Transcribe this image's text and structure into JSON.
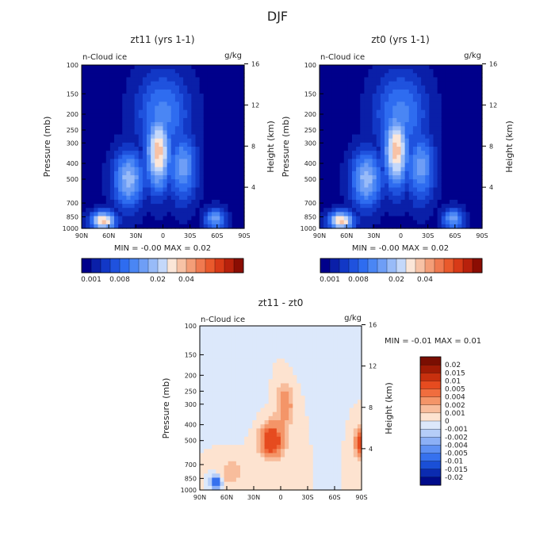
{
  "figure_title": "DJF",
  "colors": {
    "seq": [
      "#00008b",
      "#0a1fa8",
      "#1238c6",
      "#1f52de",
      "#2e6cf0",
      "#4a86f4",
      "#6e9ef6",
      "#98bbf8",
      "#c4d8fa",
      "#fbe6d8",
      "#f7c2a6",
      "#f49e78",
      "#f07a50",
      "#ea5a2c",
      "#d83a17",
      "#b8210c",
      "#8b0d03"
    ],
    "diff": [
      "#000b8a",
      "#0b2bb0",
      "#1a4fd6",
      "#3671ee",
      "#5e90f3",
      "#8cb0f6",
      "#b5cdf8",
      "#dce8fb",
      "#fde3d0",
      "#f8bd9c",
      "#f49568",
      "#f06d3e",
      "#e64b1f",
      "#c8300e",
      "#a01b05",
      "#7a0e02"
    ]
  },
  "chart_data": [
    {
      "type": "heatmap",
      "title": "zt11 (yrs 1-1)",
      "variable_label": "n-Cloud ice",
      "units": "g/kg",
      "ylabel": "Pressure (mb)",
      "ylabel_right": "Height (km)",
      "x_ticks": [
        "90N",
        "60N",
        "30N",
        "0",
        "30S",
        "60S",
        "90S"
      ],
      "x_range": [
        90,
        -90
      ],
      "y_ticks": [
        100,
        150,
        200,
        250,
        300,
        400,
        500,
        700,
        850,
        1000
      ],
      "y_range": [
        100,
        1000
      ],
      "y_scale": "log",
      "height_ticks": [
        16,
        12,
        8,
        4
      ],
      "min_max_text": "MIN =  -0.00    MAX =   0.02",
      "colorbar_labels": [
        "0.001",
        "0.008",
        "0.02",
        "0.04"
      ],
      "colorbar_label_positions": [
        0,
        3,
        7,
        10
      ],
      "colorbar_levels": 17,
      "field": [
        {
          "lat": 66,
          "p": 900,
          "v": 10,
          "rx": 14,
          "rp": 0.14
        },
        {
          "lat": 38,
          "p": 500,
          "v": 7,
          "rx": 18,
          "rp": 0.42
        },
        {
          "lat": 5,
          "p": 340,
          "v": 10,
          "rx": 14,
          "rp": 0.55
        },
        {
          "lat": -22,
          "p": 420,
          "v": 6,
          "rx": 16,
          "rp": 0.5
        },
        {
          "lat": -58,
          "p": 880,
          "v": 6,
          "rx": 12,
          "rp": 0.16
        },
        {
          "lat": 0,
          "p": 200,
          "v": 5,
          "rx": 30,
          "rp": 0.6
        }
      ]
    },
    {
      "type": "heatmap",
      "title": "zt0 (yrs 1-1)",
      "variable_label": "n-Cloud ice",
      "units": "g/kg",
      "ylabel": "Pressure (mb)",
      "ylabel_right": "Height (km)",
      "x_ticks": [
        "90N",
        "60N",
        "30N",
        "0",
        "30S",
        "60S",
        "90S"
      ],
      "x_range": [
        90,
        -90
      ],
      "y_ticks": [
        100,
        150,
        200,
        250,
        300,
        400,
        500,
        700,
        850,
        1000
      ],
      "y_range": [
        100,
        1000
      ],
      "y_scale": "log",
      "height_ticks": [
        16,
        12,
        8,
        4
      ],
      "min_max_text": "MIN =  -0.00    MAX =   0.02",
      "colorbar_labels": [
        "0.001",
        "0.008",
        "0.02",
        "0.04"
      ],
      "colorbar_label_positions": [
        0,
        3,
        7,
        10
      ],
      "colorbar_levels": 17,
      "field": [
        {
          "lat": 66,
          "p": 900,
          "v": 10,
          "rx": 14,
          "rp": 0.14
        },
        {
          "lat": 38,
          "p": 500,
          "v": 7,
          "rx": 18,
          "rp": 0.42
        },
        {
          "lat": 5,
          "p": 330,
          "v": 10,
          "rx": 14,
          "rp": 0.55
        },
        {
          "lat": -22,
          "p": 420,
          "v": 6,
          "rx": 16,
          "rp": 0.5
        },
        {
          "lat": -58,
          "p": 880,
          "v": 6,
          "rx": 12,
          "rp": 0.16
        },
        {
          "lat": 0,
          "p": 200,
          "v": 5,
          "rx": 30,
          "rp": 0.6
        }
      ]
    },
    {
      "type": "heatmap",
      "title": "zt11 - zt0",
      "variable_label": "n-Cloud ice",
      "units": "g/kg",
      "ylabel": "Pressure (mb)",
      "ylabel_right": "Height (km)",
      "x_ticks": [
        "90N",
        "60N",
        "30N",
        "0",
        "30S",
        "60S",
        "90S"
      ],
      "x_range": [
        90,
        -90
      ],
      "y_ticks": [
        100,
        150,
        200,
        250,
        300,
        400,
        500,
        700,
        850,
        1000
      ],
      "y_range": [
        100,
        1000
      ],
      "y_scale": "log",
      "height_ticks": [
        16,
        12,
        8,
        4
      ],
      "min_max_text": "MIN =   -0.01    MAX =    0.01",
      "colorbar_labels": [
        "0.02",
        "0.015",
        "0.01",
        "0.005",
        "0.004",
        "0.002",
        "0.001",
        "0",
        "-0.001",
        "-0.002",
        "-0.004",
        "-0.005",
        "-0.01",
        "-0.015",
        "-0.02"
      ],
      "colorbar_levels": 16,
      "field": [
        {
          "lat": 10,
          "p": 500,
          "v": 0.008,
          "rx": 12,
          "rp": 0.22
        },
        {
          "lat": -5,
          "p": 300,
          "v": 0.003,
          "rx": 10,
          "rp": 0.3
        },
        {
          "lat": 55,
          "p": 780,
          "v": 0.002,
          "rx": 12,
          "rp": 0.18
        },
        {
          "lat": 72,
          "p": 900,
          "v": -0.01,
          "rx": 5,
          "rp": 0.08
        },
        {
          "lat": -88,
          "p": 520,
          "v": 0.006,
          "rx": 5,
          "rp": 0.2
        },
        {
          "lat": 45,
          "p": 200,
          "v": -0.0008,
          "rx": 20,
          "rp": 0.5
        },
        {
          "lat": -40,
          "p": 150,
          "v": -0.0008,
          "rx": 20,
          "rp": 0.4
        }
      ]
    }
  ]
}
